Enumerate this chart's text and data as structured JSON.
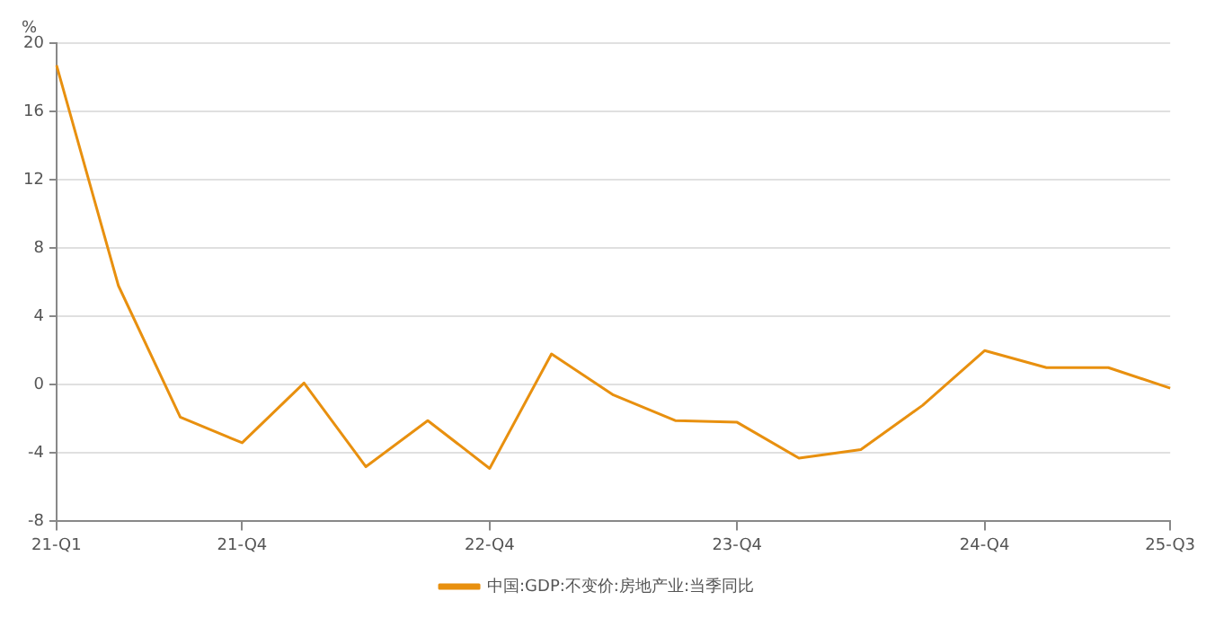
{
  "chart_data": {
    "type": "line",
    "ylabel": "%",
    "categories": [
      "21-Q1",
      null,
      null,
      "21-Q4",
      null,
      null,
      null,
      "22-Q4",
      null,
      null,
      null,
      "23-Q4",
      null,
      null,
      null,
      "24-Q4",
      null,
      null,
      "25-Q3"
    ],
    "series": [
      {
        "name": "中国:GDP:不变价:房地产业:当季同比",
        "color": "#e8900f",
        "values": [
          18.7,
          5.8,
          -1.9,
          -3.4,
          0.1,
          -4.8,
          -2.1,
          -4.9,
          1.8,
          -0.6,
          -2.1,
          -2.2,
          -4.3,
          -3.8,
          -1.2,
          2.0,
          1.0,
          1.0,
          -0.2
        ]
      }
    ],
    "ylim": [
      -8,
      20
    ],
    "yticks": [
      -8,
      -4,
      0,
      4,
      8,
      12,
      16,
      20
    ],
    "grid": "y",
    "legend": "bottom",
    "marker": "none",
    "line_style": "solid"
  }
}
